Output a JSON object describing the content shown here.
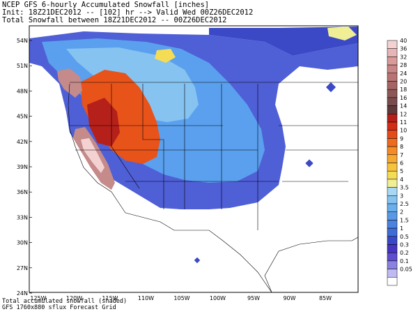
{
  "header": {
    "line1": "NCEP GFS 6-hourly Accumulated Snowfall [inches]",
    "line2": "Init: 18Z21DEC2012 -- [102] hr --> Valid Wed 00Z26DEC2012",
    "line3": "Total Snowfall between 18Z21DEC2012 -- 00Z26DEC2012"
  },
  "footer": {
    "line1": "Total accumulated snowfall (shaded)",
    "line2": "GFS 1760x880 sflux Forecast Grid"
  },
  "map": {
    "lat_labels": [
      "54N",
      "51N",
      "48N",
      "45N",
      "42N",
      "39N",
      "36N",
      "33N",
      "30N",
      "27N",
      "24N"
    ],
    "lon_labels": [
      "125W",
      "120W",
      "115W",
      "110W",
      "105W",
      "100W",
      "95W",
      "90W",
      "85W"
    ],
    "background_color": "#ffffff",
    "snow_colors": {
      "light": "#4f5fd6",
      "moderate": "#5aa0ee",
      "heavy": "#e8531a",
      "extreme": "#c58a8a"
    }
  },
  "legend": {
    "levels": [
      "40",
      "36",
      "32",
      "28",
      "24",
      "20",
      "18",
      "16",
      "14",
      "12",
      "11",
      "10",
      "9",
      "8",
      "7",
      "6",
      "5",
      "4",
      "3.5",
      "3",
      "2.5",
      "2",
      "1.5",
      "1",
      "0.5",
      "0.3",
      "0.2",
      "0.1",
      "0.05"
    ],
    "colors": [
      "#f4d2d2",
      "#e7b5b5",
      "#d99a9a",
      "#c98585",
      "#b87474",
      "#a56363",
      "#8e5757",
      "#7a4c4c",
      "#5e3a3a",
      "#b5201a",
      "#d22d17",
      "#e44b1a",
      "#ee6a1f",
      "#f38b27",
      "#f5a832",
      "#f7c33c",
      "#f4dc55",
      "#f0ef96",
      "#a8d8f3",
      "#86c3f0",
      "#6aaeec",
      "#5898e6",
      "#4a82df",
      "#3f6cd6",
      "#3a48c8",
      "#4635c0",
      "#5f4dd0",
      "#8a82e0",
      "#c0baf2"
    ]
  }
}
